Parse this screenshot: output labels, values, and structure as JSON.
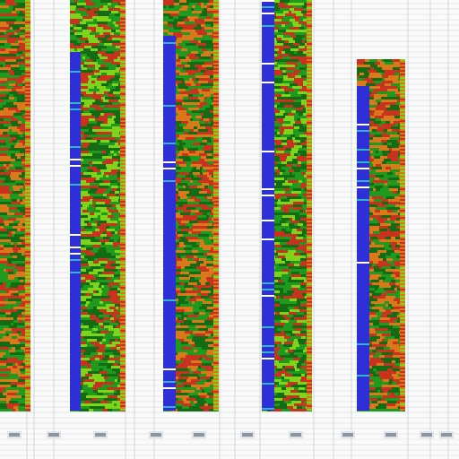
{
  "view": {
    "background": "#fafafa",
    "grid_color": "#cfd6dc"
  },
  "track_colors": {
    "green": "#1f9a1f",
    "dark_green": "#136b13",
    "red": "#c8321f",
    "orange": "#d9791a",
    "blue": "#2f2fd8",
    "cyan": "#2fb6c8",
    "lime": "#7fd41a"
  },
  "tracks": [
    {
      "name": "track-1",
      "palette": [
        "#1f9a1f",
        "#c8321f",
        "#136b13",
        "#d9791a"
      ],
      "has_blue_edge": false
    },
    {
      "name": "track-2",
      "palette": [
        "#1f9a1f",
        "#136b13",
        "#c8321f",
        "#7fd41a"
      ],
      "has_blue_edge": true
    },
    {
      "name": "track-3",
      "palette": [
        "#1f9a1f",
        "#136b13",
        "#c8321f",
        "#d9791a"
      ],
      "has_blue_edge": true
    },
    {
      "name": "track-4",
      "palette": [
        "#1f9a1f",
        "#136b13",
        "#c8321f",
        "#7fd41a"
      ],
      "has_blue_edge": true
    },
    {
      "name": "track-5",
      "palette": [
        "#1f9a1f",
        "#136b13",
        "#c8321f",
        "#d9791a"
      ],
      "has_blue_edge": true
    }
  ],
  "footer_icons": [
    "thumbnail-icon",
    "thumbnail-icon",
    "thumbnail-icon",
    "thumbnail-icon",
    "thumbnail-icon",
    "thumbnail-icon",
    "thumbnail-icon",
    "thumbnail-icon",
    "thumbnail-icon",
    "thumbnail-icon",
    "thumbnail-icon"
  ]
}
